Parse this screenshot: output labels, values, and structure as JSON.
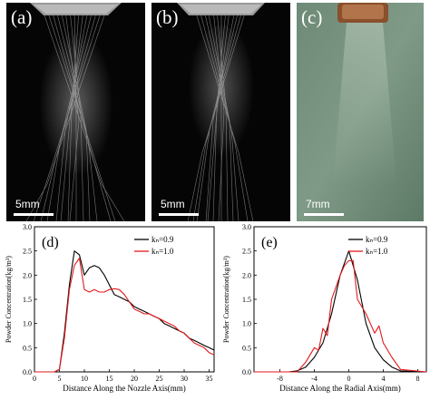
{
  "images": [
    {
      "label": "(a)",
      "scale_label": "5mm"
    },
    {
      "label": "(b)",
      "scale_label": "5mm"
    },
    {
      "label": "(c)",
      "scale_label": "7mm"
    }
  ],
  "chart_data": [
    {
      "panel_label": "(d)",
      "type": "line",
      "xlabel": "Distance Along the Nozzle Axis(mm)",
      "ylabel": "Powder Concentration(kg/m³)",
      "xlim": [
        0,
        36
      ],
      "ylim": [
        0,
        3.0
      ],
      "xticks": [
        "0",
        "5",
        "10",
        "15",
        "20",
        "25",
        "30",
        "35"
      ],
      "yticks": [
        "0.0",
        "0.5",
        "1.0",
        "1.5",
        "2.0",
        "2.5",
        "3.0"
      ],
      "legend_position": "top-right",
      "series": [
        {
          "name": "kₙ=0.9",
          "color": "#000000",
          "x": [
            0,
            4,
            5,
            6,
            7,
            8,
            9,
            10,
            11,
            12,
            13,
            14,
            15,
            16,
            17,
            18,
            19,
            20,
            21,
            22,
            23,
            24,
            25,
            26,
            27,
            28,
            29,
            30,
            31,
            32,
            33,
            34,
            35,
            36
          ],
          "y": [
            0,
            0,
            0.05,
            0.8,
            1.8,
            2.5,
            2.42,
            2.0,
            2.15,
            2.2,
            2.15,
            2.0,
            1.8,
            1.6,
            1.55,
            1.5,
            1.45,
            1.35,
            1.3,
            1.25,
            1.2,
            1.15,
            1.1,
            1.0,
            0.95,
            0.9,
            0.85,
            0.8,
            0.7,
            0.65,
            0.6,
            0.55,
            0.5,
            0.45
          ]
        },
        {
          "name": "kₙ=1.0",
          "color": "#e31a1c",
          "x": [
            0,
            4,
            5,
            6,
            7,
            8,
            9,
            10,
            11,
            12,
            13,
            14,
            15,
            16,
            17,
            18,
            19,
            20,
            21,
            22,
            23,
            24,
            25,
            26,
            27,
            28,
            29,
            30,
            31,
            32,
            33,
            34,
            35,
            36
          ],
          "y": [
            0,
            0,
            0.05,
            0.7,
            1.7,
            2.2,
            2.35,
            1.7,
            1.65,
            1.7,
            1.65,
            1.65,
            1.7,
            1.72,
            1.7,
            1.6,
            1.45,
            1.3,
            1.25,
            1.2,
            1.2,
            1.15,
            1.1,
            1.05,
            1.0,
            0.95,
            0.85,
            0.8,
            0.7,
            0.6,
            0.55,
            0.5,
            0.4,
            0.35
          ]
        }
      ]
    },
    {
      "panel_label": "(e)",
      "type": "line",
      "xlabel": "Distance Along the Radial Axis(mm)",
      "ylabel": "Powder Concentration(kg/m³)",
      "xlim": [
        -11,
        9
      ],
      "ylim": [
        0,
        3.0
      ],
      "xticks": [
        "-8",
        "-4",
        "0",
        "4",
        "8"
      ],
      "yticks": [
        "0.0",
        "0.5",
        "1.0",
        "1.5",
        "2.0",
        "2.5",
        "3.0"
      ],
      "legend_position": "top-right",
      "series": [
        {
          "name": "kₙ=0.9",
          "color": "#000000",
          "x": [
            -11,
            -7,
            -6,
            -5,
            -4,
            -3,
            -2,
            -1,
            0,
            1,
            2,
            3,
            4,
            5,
            6,
            9
          ],
          "y": [
            0,
            0,
            0.02,
            0.1,
            0.3,
            0.6,
            1.2,
            2.0,
            2.5,
            1.9,
            1.0,
            0.5,
            0.25,
            0.1,
            0.02,
            0
          ]
        },
        {
          "name": "kₙ=1.0",
          "color": "#e31a1c",
          "x": [
            -11,
            -6,
            -5,
            -4,
            -3.5,
            -3,
            -2.5,
            -2,
            -1,
            -0.5,
            0,
            0.5,
            1,
            2,
            3,
            3.5,
            4,
            5,
            6,
            9
          ],
          "y": [
            0,
            0,
            0.2,
            0.5,
            0.45,
            0.9,
            0.75,
            1.5,
            2.0,
            2.2,
            2.3,
            2.3,
            1.5,
            1.2,
            0.8,
            0.95,
            0.6,
            0.3,
            0.05,
            0
          ]
        }
      ]
    }
  ]
}
